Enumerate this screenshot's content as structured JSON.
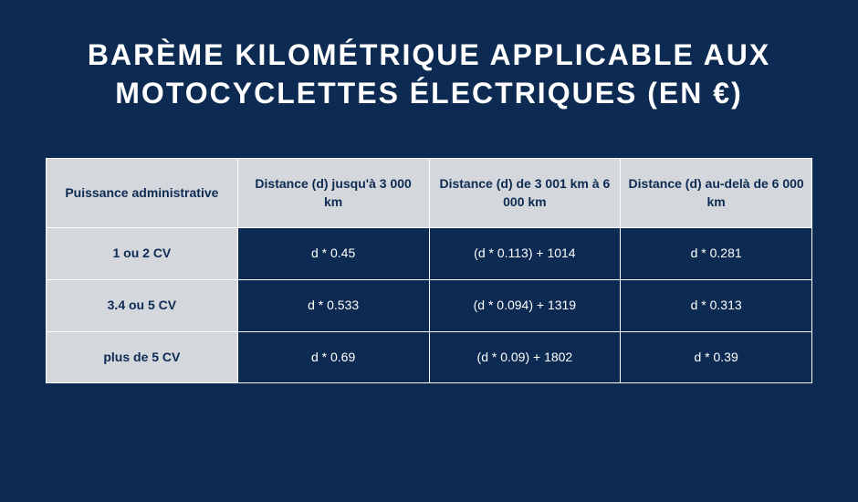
{
  "title": "BARÈME KILOMÉTRIQUE APPLICABLE AUX MOTOCYCLETTES ÉLECTRIQUES (EN €)",
  "table": {
    "type": "table",
    "background_color": "#0d2b52",
    "header_bg": "#d4d7dc",
    "header_fg": "#0d2b52",
    "cell_bg": "#0d2b52",
    "cell_fg": "#ffffff",
    "border_color": "#ffffff",
    "columns": [
      "Puissance administrative",
      "Distance (d) jusqu'à 3 000 km",
      "Distance (d) de 3 001 km à 6 000 km",
      "Distance (d) au-delà de 6 000 km"
    ],
    "rows": [
      {
        "label": "1 ou 2 CV",
        "c1": "d * 0.45",
        "c2": "(d * 0.113) + 1014",
        "c3": "d * 0.281"
      },
      {
        "label": "3.4 ou 5 CV",
        "c1": "d * 0.533",
        "c2": "(d * 0.094) + 1319",
        "c3": "d * 0.313"
      },
      {
        "label": "plus de 5 CV",
        "c1": "d * 0.69",
        "c2": "(d * 0.09) + 1802",
        "c3": "d * 0.39"
      }
    ]
  }
}
